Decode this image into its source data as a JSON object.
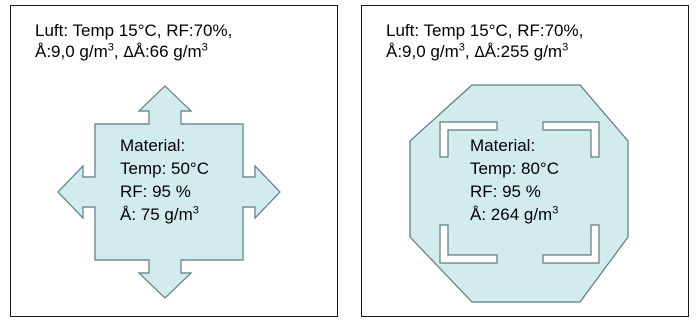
{
  "panels": [
    {
      "header_line1": "Luft: Temp 15°C, RF:70%,",
      "header_line2_start": "Å:9,0 g/m",
      "header_line2_mid": ", ",
      "header_line2_delta": "Δ",
      "header_line2_end": "Å:66 g/m",
      "material_title": "Material:",
      "material_temp": "Temp: 50°C",
      "material_rf": "RF: 95 %",
      "material_a": "Å: 75 g/m",
      "cube": "3",
      "fill_color": "#d2ecee",
      "stroke_color": "#5c7a7f",
      "shape": "square-with-four-arrows"
    },
    {
      "header_line1": "Luft: Temp 15°C, RF:70%,",
      "header_line2_start": "Å:9,0 g/m",
      "header_line2_mid": ", ",
      "header_line2_delta": "Δ",
      "header_line2_end": "Å:255 g/m",
      "material_title": "Material:",
      "material_temp": "Temp: 80°C",
      "material_rf": "RF: 95 %",
      "material_a": "Å: 264 g/m",
      "cube": "3",
      "fill_color": "#d2ecee",
      "stroke_color": "#5c7a7f",
      "shape": "octagon-with-corner-brackets"
    }
  ]
}
